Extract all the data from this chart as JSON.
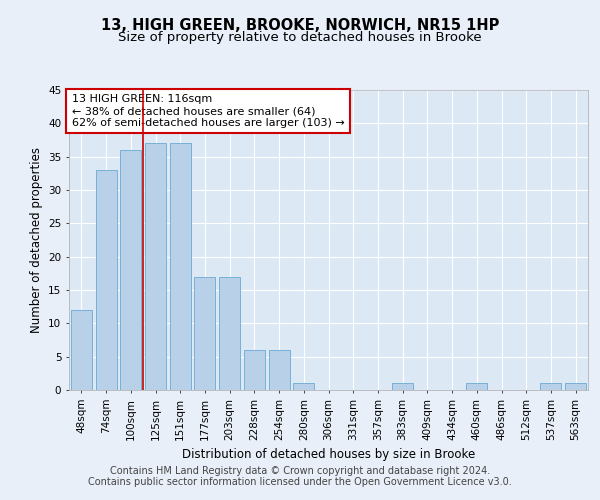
{
  "title": "13, HIGH GREEN, BROOKE, NORWICH, NR15 1HP",
  "subtitle": "Size of property relative to detached houses in Brooke",
  "xlabel": "Distribution of detached houses by size in Brooke",
  "ylabel": "Number of detached properties",
  "bar_labels": [
    "48sqm",
    "74sqm",
    "100sqm",
    "125sqm",
    "151sqm",
    "177sqm",
    "203sqm",
    "228sqm",
    "254sqm",
    "280sqm",
    "306sqm",
    "331sqm",
    "357sqm",
    "383sqm",
    "409sqm",
    "434sqm",
    "460sqm",
    "486sqm",
    "512sqm",
    "537sqm",
    "563sqm"
  ],
  "bar_values": [
    12,
    33,
    36,
    37,
    37,
    17,
    17,
    6,
    6,
    1,
    0,
    0,
    0,
    1,
    0,
    0,
    1,
    0,
    0,
    1,
    1
  ],
  "bar_color": "#b8d0e8",
  "bar_edge_color": "#6aaad4",
  "background_color": "#e8eff8",
  "plot_bg_color": "#dce8f4",
  "grid_color": "#ffffff",
  "annotation_text_line1": "13 HIGH GREEN: 116sqm",
  "annotation_text_line2": "← 38% of detached houses are smaller (64)",
  "annotation_text_line3": "62% of semi-detached houses are larger (103) →",
  "annotation_box_color": "#ffffff",
  "annotation_box_edge_color": "#cc0000",
  "vline_color": "#cc0000",
  "ylim": [
    0,
    45
  ],
  "yticks": [
    0,
    5,
    10,
    15,
    20,
    25,
    30,
    35,
    40,
    45
  ],
  "footer_line1": "Contains HM Land Registry data © Crown copyright and database right 2024.",
  "footer_line2": "Contains public sector information licensed under the Open Government Licence v3.0.",
  "title_fontsize": 10.5,
  "subtitle_fontsize": 9.5,
  "xlabel_fontsize": 8.5,
  "ylabel_fontsize": 8.5,
  "tick_fontsize": 7.5,
  "annotation_fontsize": 8,
  "footer_fontsize": 7
}
